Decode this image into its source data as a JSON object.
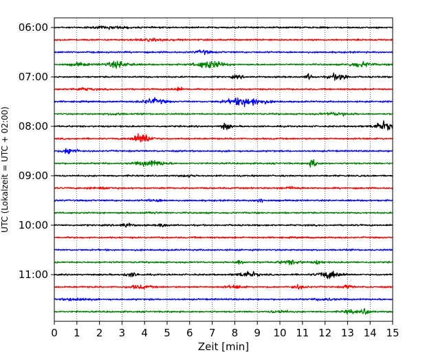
{
  "chart_data": {
    "type": "line",
    "title": "",
    "xlabel": "Zeit  [min]",
    "ylabel": "UTC (Lokalzeit = UTC + 02:00)",
    "xlim": [
      0,
      15
    ],
    "x_ticks": [
      "0",
      "1",
      "2",
      "3",
      "4",
      "5",
      "6",
      "7",
      "8",
      "9",
      "10",
      "11",
      "12",
      "13",
      "14",
      "15"
    ],
    "y_ticks": [
      "06:00",
      "07:00",
      "08:00",
      "09:00",
      "10:00",
      "11:00"
    ],
    "grid": "vertical dotted lines at each minute",
    "legend": "none",
    "trace_colors": [
      "#000000",
      "#ff0000",
      "#0000ff",
      "#008000"
    ],
    "traces_per_hour": 4,
    "trace_interval_minutes": 15,
    "series": [
      {
        "start": "06:00",
        "color": "#000000",
        "events": [
          [
            2.5,
            0.8,
            0.8
          ]
        ]
      },
      {
        "start": "06:15",
        "color": "#ff0000",
        "events": [
          [
            4.5,
            0.8,
            0.8
          ]
        ]
      },
      {
        "start": "06:30",
        "color": "#0000ff",
        "events": [
          [
            6.6,
            0.3,
            1.6
          ]
        ]
      },
      {
        "start": "06:45",
        "color": "#008000",
        "events": [
          [
            1.1,
            0.4,
            1.2
          ],
          [
            2.8,
            0.6,
            2.4
          ],
          [
            6.9,
            0.6,
            3.2
          ],
          [
            13.6,
            0.5,
            2.0
          ]
        ]
      },
      {
        "start": "07:00",
        "color": "#000000",
        "events": [
          [
            11.3,
            0.15,
            2.4
          ],
          [
            12.6,
            0.4,
            2.8
          ],
          [
            8.1,
            0.3,
            1.0
          ]
        ]
      },
      {
        "start": "07:15",
        "color": "#ff0000",
        "events": [
          [
            1.3,
            0.5,
            1.0
          ],
          [
            5.5,
            0.3,
            1.2
          ]
        ]
      },
      {
        "start": "07:30",
        "color": "#0000ff",
        "events": [
          [
            4.4,
            0.5,
            2.4
          ],
          [
            8.5,
            0.8,
            3.6
          ]
        ]
      },
      {
        "start": "07:45",
        "color": "#008000",
        "events": [
          [
            2.7,
            0.3,
            1.0
          ],
          [
            12.6,
            0.6,
            1.2
          ]
        ]
      },
      {
        "start": "08:00",
        "color": "#000000",
        "events": [
          [
            7.6,
            0.2,
            3.0
          ],
          [
            14.6,
            0.4,
            3.6
          ]
        ]
      },
      {
        "start": "08:15",
        "color": "#ff0000",
        "events": [
          [
            3.9,
            0.4,
            4.5
          ]
        ]
      },
      {
        "start": "08:30",
        "color": "#0000ff",
        "events": [
          [
            0.7,
            0.3,
            3.0
          ]
        ]
      },
      {
        "start": "08:45",
        "color": "#008000",
        "events": [
          [
            4.3,
            0.6,
            2.4
          ],
          [
            11.5,
            0.2,
            3.6
          ]
        ]
      },
      {
        "start": "09:00",
        "color": "#000000",
        "events": [
          [
            6.0,
            0.3,
            0.8
          ]
        ]
      },
      {
        "start": "09:15",
        "color": "#ff0000",
        "events": [
          [
            2.0,
            0.5,
            0.8
          ],
          [
            10.5,
            0.4,
            0.8
          ]
        ]
      },
      {
        "start": "09:30",
        "color": "#0000ff",
        "events": [
          [
            9.1,
            0.2,
            1.8
          ],
          [
            4.5,
            0.4,
            0.8
          ]
        ]
      },
      {
        "start": "09:45",
        "color": "#008000",
        "events": [
          [
            4.3,
            0.3,
            0.8
          ]
        ]
      },
      {
        "start": "10:00",
        "color": "#000000",
        "events": [
          [
            3.2,
            0.3,
            1.6
          ],
          [
            4.8,
            0.2,
            1.4
          ]
        ]
      },
      {
        "start": "10:15",
        "color": "#ff0000",
        "events": []
      },
      {
        "start": "10:30",
        "color": "#0000ff",
        "events": []
      },
      {
        "start": "10:45",
        "color": "#008000",
        "events": [
          [
            8.2,
            0.2,
            1.6
          ],
          [
            10.5,
            0.5,
            1.6
          ],
          [
            11.7,
            0.2,
            1.4
          ]
        ]
      },
      {
        "start": "11:00",
        "color": "#000000",
        "events": [
          [
            3.4,
            0.3,
            1.6
          ],
          [
            8.6,
            0.4,
            2.4
          ],
          [
            12.2,
            0.5,
            3.0
          ]
        ]
      },
      {
        "start": "11:15",
        "color": "#ff0000",
        "events": [
          [
            3.8,
            0.5,
            1.4
          ],
          [
            8.0,
            0.4,
            1.2
          ],
          [
            10.8,
            0.3,
            1.4
          ],
          [
            13.0,
            0.2,
            1.6
          ]
        ]
      },
      {
        "start": "11:30",
        "color": "#0000ff",
        "events": [
          [
            1.0,
            0.5,
            1.2
          ],
          [
            12.0,
            0.4,
            1.0
          ]
        ]
      },
      {
        "start": "11:45",
        "color": "#008000",
        "events": [
          [
            10.0,
            0.4,
            1.0
          ],
          [
            13.1,
            0.3,
            1.6
          ],
          [
            13.8,
            0.2,
            2.4
          ]
        ]
      }
    ]
  }
}
